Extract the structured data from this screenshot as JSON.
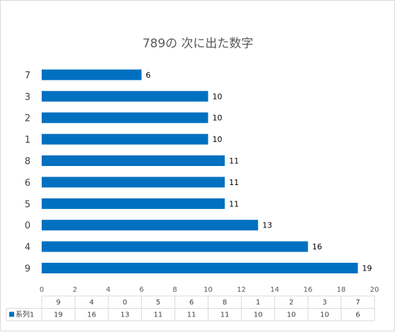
{
  "chart_data": {
    "type": "bar",
    "orientation": "horizontal",
    "title": "789の 次に出た数字",
    "categories": [
      "9",
      "4",
      "0",
      "5",
      "6",
      "8",
      "1",
      "2",
      "3",
      "7"
    ],
    "series": [
      {
        "name": "系列1",
        "values": [
          19,
          16,
          13,
          11,
          11,
          11,
          10,
          10,
          10,
          6
        ],
        "color": "#0070c0"
      }
    ],
    "xlim": [
      0,
      20
    ],
    "xticks": [
      0,
      2,
      4,
      6,
      8,
      10,
      12,
      14,
      16,
      18,
      20
    ],
    "data_labels": true,
    "gridlines": false,
    "data_table": true
  }
}
